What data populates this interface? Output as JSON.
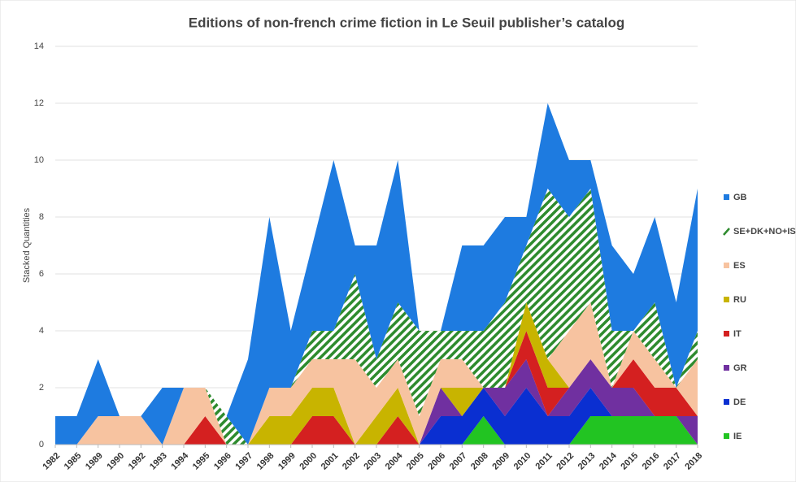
{
  "chart_data": {
    "type": "stacked_area",
    "title": "Editions of non-french crime fiction in Le Seuil publisher’s catalog",
    "y_label": "Stacked Quantities",
    "categories": [
      "1982",
      "1985",
      "1989",
      "1990",
      "1992",
      "1993",
      "1994",
      "1995",
      "1996",
      "1997",
      "1998",
      "1999",
      "2000",
      "2001",
      "2002",
      "2003",
      "2004",
      "2005",
      "2006",
      "2007",
      "2008",
      "2009",
      "2010",
      "2011",
      "2012",
      "2013",
      "2014",
      "2015",
      "2016",
      "2017",
      "2018"
    ],
    "series": [
      {
        "name": "IE",
        "color": "#22c422",
        "values": [
          0,
          0,
          0,
          0,
          0,
          0,
          0,
          0,
          0,
          0,
          0,
          0,
          0,
          0,
          0,
          0,
          0,
          0,
          0,
          0,
          1,
          0,
          0,
          0,
          0,
          1,
          1,
          1,
          1,
          1,
          0
        ]
      },
      {
        "name": "DE",
        "color": "#0a2fd1",
        "values": [
          0,
          0,
          0,
          0,
          0,
          0,
          0,
          0,
          0,
          0,
          0,
          0,
          0,
          0,
          0,
          0,
          0,
          0,
          1,
          1,
          1,
          1,
          2,
          1,
          1,
          1,
          0,
          0,
          0,
          0,
          0
        ]
      },
      {
        "name": "GR",
        "color": "#7030a0",
        "values": [
          0,
          0,
          0,
          0,
          0,
          0,
          0,
          0,
          0,
          0,
          0,
          0,
          0,
          0,
          0,
          0,
          0,
          0,
          1,
          0,
          0,
          1,
          1,
          0,
          1,
          1,
          1,
          1,
          0,
          0,
          1
        ]
      },
      {
        "name": "IT",
        "color": "#d42020",
        "values": [
          0,
          0,
          0,
          0,
          0,
          0,
          0,
          1,
          0,
          0,
          0,
          0,
          1,
          1,
          0,
          0,
          1,
          0,
          0,
          0,
          0,
          0,
          1,
          1,
          0,
          0,
          0,
          1,
          1,
          1,
          0
        ]
      },
      {
        "name": "RU",
        "color": "#c8b400",
        "values": [
          0,
          0,
          0,
          0,
          0,
          0,
          0,
          0,
          0,
          0,
          1,
          1,
          1,
          1,
          0,
          1,
          1,
          0,
          0,
          1,
          0,
          0,
          1,
          1,
          0,
          0,
          0,
          0,
          0,
          0,
          0
        ]
      },
      {
        "name": "ES",
        "color": "#f7c3a0",
        "values": [
          0,
          0,
          1,
          1,
          1,
          0,
          2,
          1,
          0,
          0,
          1,
          1,
          1,
          1,
          3,
          1,
          1,
          1,
          1,
          1,
          0,
          0,
          0,
          0,
          2,
          2,
          0,
          1,
          1,
          0,
          2
        ]
      },
      {
        "name": "SE+DK+NO+IS",
        "color": "#2e8b2e",
        "hatch": true,
        "values": [
          0,
          0,
          0,
          0,
          0,
          0,
          0,
          0,
          1,
          0,
          0,
          0,
          1,
          1,
          3,
          1,
          2,
          3,
          1,
          1,
          2,
          3,
          2,
          6,
          4,
          4,
          2,
          0,
          2,
          0,
          1
        ]
      },
      {
        "name": "GB",
        "color": "#1e7be0",
        "values": [
          1,
          1,
          2,
          0,
          0,
          2,
          0,
          0,
          0,
          3,
          6,
          2,
          3,
          6,
          1,
          4,
          5,
          0,
          0,
          3,
          3,
          3,
          1,
          3,
          2,
          1,
          3,
          2,
          3,
          3,
          5
        ]
      }
    ],
    "ylim": [
      0,
      14
    ],
    "yticks": [
      0,
      2,
      4,
      6,
      8,
      10,
      12,
      14
    ],
    "grid": true,
    "legend": "right"
  }
}
